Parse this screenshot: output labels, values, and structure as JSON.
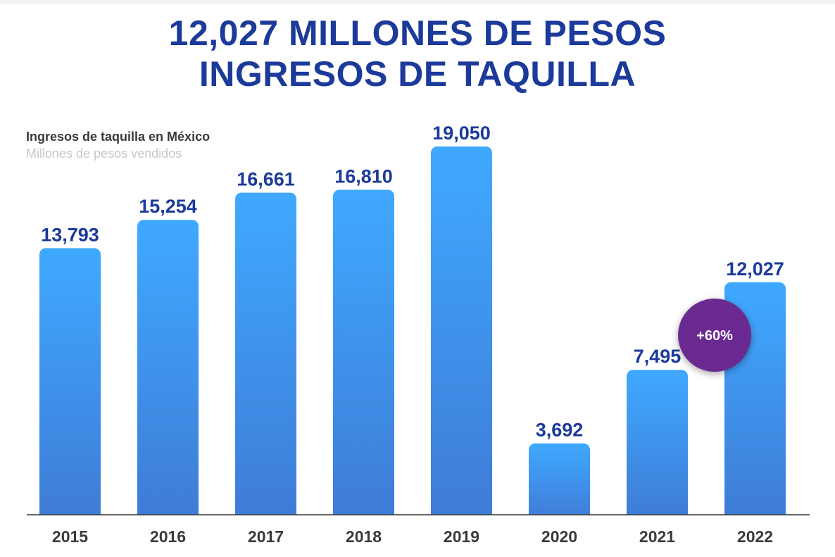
{
  "header": {
    "line1": "12,027 MILLONES DE PESOS",
    "line2": "INGRESOS DE TAQUILLA"
  },
  "colors": {
    "title": "#1b3a9a",
    "bar_top": "#3fa9ff",
    "bar_bottom": "#3f7bd6",
    "badge": "#6a2c91",
    "axis": "#333333"
  },
  "chart_data": {
    "type": "bar",
    "title": "Ingresos de taquilla en México",
    "subtitle": "Millones de pesos vendidos",
    "categories": [
      "2015",
      "2016",
      "2017",
      "2018",
      "2019",
      "2020",
      "2021",
      "2022"
    ],
    "values": [
      13793,
      15254,
      16661,
      16810,
      19050,
      3692,
      7495,
      12027
    ],
    "value_labels": [
      "13,793",
      "15,254",
      "16,661",
      "16,810",
      "19,050",
      "3,692",
      "7,495",
      "12,027"
    ],
    "ylim": [
      0,
      19050
    ],
    "grid": false,
    "legend": "none",
    "annotation": {
      "text": "+60%",
      "category": "2022"
    }
  }
}
